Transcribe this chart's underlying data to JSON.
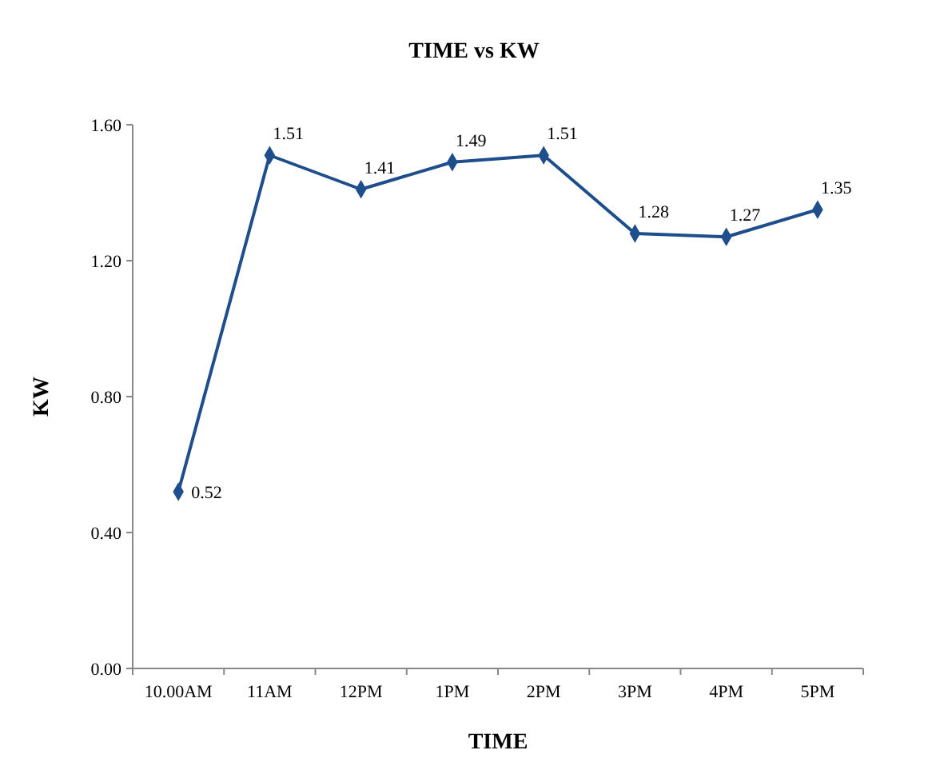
{
  "chart_data": {
    "type": "line",
    "title": "TIME vs KW",
    "xlabel": "TIME",
    "ylabel": "KW",
    "categories": [
      "10.00AM",
      "11AM",
      "12PM",
      "1PM",
      "2PM",
      "3PM",
      "4PM",
      "5PM"
    ],
    "series": [
      {
        "color": "#1f4e8c",
        "values": [
          0.52,
          1.51,
          1.41,
          1.49,
          1.51,
          1.28,
          1.27,
          1.35
        ]
      }
    ],
    "ylim": [
      0,
      1.6
    ],
    "yticks": [
      {
        "value": 0,
        "label": "0.00"
      },
      {
        "value": 0.4,
        "label": "0.40"
      },
      {
        "value": 0.8,
        "label": "0.80"
      },
      {
        "value": 1.2,
        "label": "1.20"
      },
      {
        "value": 1.6,
        "label": "1.60"
      }
    ],
    "data_labels": true,
    "marker": "diamond",
    "line_style": "solid",
    "grid": false
  }
}
